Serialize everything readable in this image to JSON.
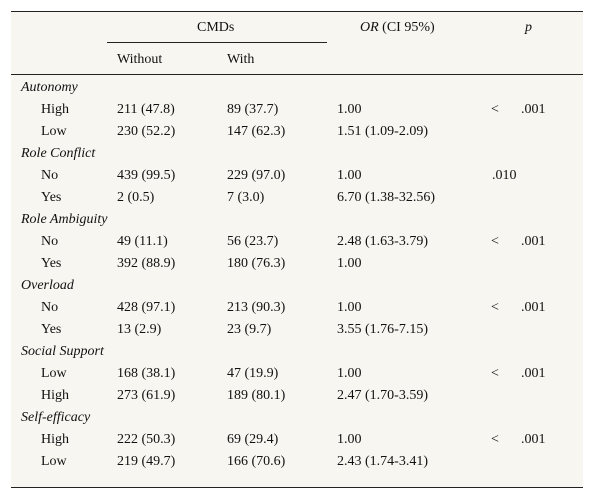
{
  "header": {
    "cmds": "CMDs",
    "or_italic": "OR",
    "or_rest": " (CI 95%)",
    "p": "p",
    "without": "Without",
    "with": "With"
  },
  "sections": [
    {
      "label": "Autonomy",
      "rows": [
        {
          "label": "High",
          "without": "211 (47.8)",
          "with": "89 (37.7)",
          "or": "1.00",
          "p_sign": "<",
          "p_value": ".001"
        },
        {
          "label": "Low",
          "without": "230 (52.2)",
          "with": "147 (62.3)",
          "or": "1.51 (1.09-2.09)",
          "p_sign": "",
          "p_value": ""
        }
      ]
    },
    {
      "label": "Role Conflict",
      "rows": [
        {
          "label": "No",
          "without": "439 (99.5)",
          "with": "229 (97.0)",
          "or": "1.00",
          "p_sign": "",
          "p_value": ".010"
        },
        {
          "label": "Yes",
          "without": "2 (0.5)",
          "with": "7 (3.0)",
          "or": "6.70 (1.38-32.56)",
          "p_sign": "",
          "p_value": ""
        }
      ]
    },
    {
      "label": "Role Ambiguity",
      "rows": [
        {
          "label": "No",
          "without": "49 (11.1)",
          "with": "56 (23.7)",
          "or": "2.48 (1.63-3.79)",
          "p_sign": "<",
          "p_value": ".001"
        },
        {
          "label": "Yes",
          "without": "392 (88.9)",
          "with": "180 (76.3)",
          "or": "1.00",
          "p_sign": "",
          "p_value": ""
        }
      ]
    },
    {
      "label": "Overload",
      "rows": [
        {
          "label": "No",
          "without": "428 (97.1)",
          "with": "213 (90.3)",
          "or": "1.00",
          "p_sign": "<",
          "p_value": ".001"
        },
        {
          "label": "Yes",
          "without": "13 (2.9)",
          "with": "23 (9.7)",
          "or": "3.55 (1.76-7.15)",
          "p_sign": "",
          "p_value": ""
        }
      ]
    },
    {
      "label": "Social Support",
      "rows": [
        {
          "label": "Low",
          "without": "168 (38.1)",
          "with": "47 (19.9)",
          "or": "1.00",
          "p_sign": "<",
          "p_value": ".001"
        },
        {
          "label": "High",
          "without": "273 (61.9)",
          "with": "189 (80.1)",
          "or": "2.47 (1.70-3.59)",
          "p_sign": "",
          "p_value": ""
        }
      ]
    },
    {
      "label": "Self-efficacy",
      "rows": [
        {
          "label": "High",
          "without": "222 (50.3)",
          "with": "69 (29.4)",
          "or": "1.00",
          "p_sign": "<",
          "p_value": ".001"
        },
        {
          "label": "Low",
          "without": "219 (49.7)",
          "with": "166 (70.6)",
          "or": "2.43 (1.74-3.41)",
          "p_sign": "",
          "p_value": ""
        }
      ]
    }
  ]
}
